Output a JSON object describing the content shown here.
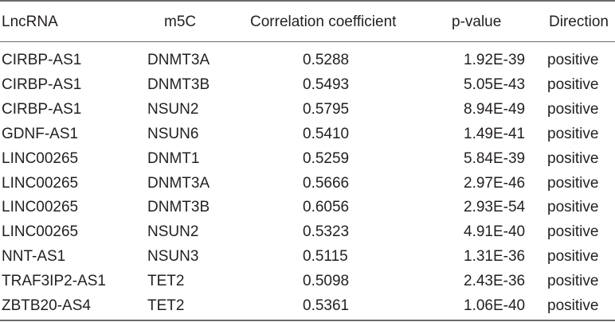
{
  "table": {
    "headers": {
      "lncrna": "LncRNA",
      "m5c": "m5C",
      "corr": "Correlation coefficient",
      "pval": "p-value",
      "direction": "Direction"
    },
    "rows": [
      {
        "lncrna": "CIRBP-AS1",
        "m5c": "DNMT3A",
        "corr": "0.5288",
        "pval": "1.92E-39",
        "direction": "positive"
      },
      {
        "lncrna": "CIRBP-AS1",
        "m5c": "DNMT3B",
        "corr": "0.5493",
        "pval": "5.05E-43",
        "direction": "positive"
      },
      {
        "lncrna": "CIRBP-AS1",
        "m5c": "NSUN2",
        "corr": "0.5795",
        "pval": "8.94E-49",
        "direction": "positive"
      },
      {
        "lncrna": "GDNF-AS1",
        "m5c": "NSUN6",
        "corr": "0.5410",
        "pval": "1.49E-41",
        "direction": "positive"
      },
      {
        "lncrna": "LINC00265",
        "m5c": "DNMT1",
        "corr": "0.5259",
        "pval": "5.84E-39",
        "direction": "positive"
      },
      {
        "lncrna": "LINC00265",
        "m5c": "DNMT3A",
        "corr": "0.5666",
        "pval": "2.97E-46",
        "direction": "positive"
      },
      {
        "lncrna": "LINC00265",
        "m5c": "DNMT3B",
        "corr": "0.6056",
        "pval": "2.93E-54",
        "direction": "positive"
      },
      {
        "lncrna": "LINC00265",
        "m5c": "NSUN2",
        "corr": "0.5323",
        "pval": "4.91E-40",
        "direction": "positive"
      },
      {
        "lncrna": "NNT-AS1",
        "m5c": "NSUN3",
        "corr": "0.5115",
        "pval": "1.31E-36",
        "direction": "positive"
      },
      {
        "lncrna": "TRAF3IP2-AS1",
        "m5c": "TET2",
        "corr": "0.5098",
        "pval": "2.43E-36",
        "direction": "positive"
      },
      {
        "lncrna": "ZBTB20-AS4",
        "m5c": "TET2",
        "corr": "0.5361",
        "pval": "1.06E-40",
        "direction": "positive"
      }
    ]
  }
}
